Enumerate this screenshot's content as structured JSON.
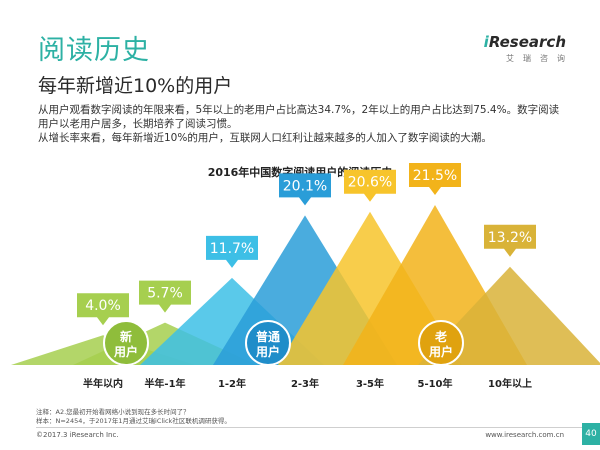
{
  "page": {
    "title": "阅读历史",
    "subtitle": "每年新增近10%的用户",
    "logo_brand": "Research",
    "logo_i": "i",
    "logo_sub": "艾瑞咨询",
    "desc_line1": "从用户观看数字阅读的年限来看，5年以上的老用户占比高达34.7%，2年以上的用户占比达到75.4%。数字阅读用户以老用户居多，长期培养了阅读习惯。",
    "desc_line2": "从增长率来看，每年新增近10%的用户，互联网人口红利让越来越多的人加入了数字阅读的大潮。",
    "note_line1": "注释：A2.您最初开始看网络小说到现在多长时间了？",
    "note_line2": "样本：N=2454，于2017年1月通过艾瑞iClick社区联机调研获得。",
    "copyright": "©2017.3 iResearch Inc.",
    "website": "www.iresearch.com.cn",
    "page_number": "40"
  },
  "colors": {
    "accent": "#2db1a4"
  },
  "chart_data": {
    "type": "bar",
    "title": "2016年中国数字阅读用户的阅读历史",
    "categories": [
      "半年以内",
      "半年-1年",
      "1-2年",
      "2-3年",
      "3-5年",
      "5-10年",
      "10年以上"
    ],
    "values": [
      4.0,
      5.7,
      11.7,
      20.1,
      20.6,
      21.5,
      13.2
    ],
    "value_labels": [
      "4.0%",
      "5.7%",
      "11.7%",
      "20.1%",
      "20.6%",
      "21.5%",
      "13.2%"
    ],
    "unit": "%",
    "colors": [
      "#a6cf4f",
      "#a6cf4f",
      "#3dbfe6",
      "#2a9dd8",
      "#f7c42b",
      "#f2b31a",
      "#d9b338"
    ],
    "ylim": [
      0,
      25
    ],
    "groups": [
      {
        "label": "新用户",
        "line1": "新",
        "line2": "用户"
      },
      {
        "label": "普通用户",
        "line1": "普通",
        "line2": "用户"
      },
      {
        "label": "老用户",
        "line1": "老",
        "line2": "用户"
      }
    ]
  }
}
